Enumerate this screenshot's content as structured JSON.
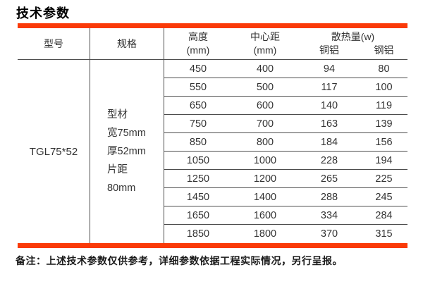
{
  "page": {
    "title": "技术参数",
    "note": "备注：上述技术参数仅供参考，详细参数依据工程实际情况，另行呈报。"
  },
  "colors": {
    "accent_bar": "#fa3a08",
    "grid_line": "#4d4d4d",
    "text": "#333333"
  },
  "table": {
    "model_header": "型号",
    "model_value": "TGL75*52",
    "spec_header": "规格",
    "spec_lines": [
      "型材",
      "宽75mm",
      "厚52mm",
      "片距",
      "80mm"
    ],
    "col_height_line1": "高度",
    "col_height_line2": "(mm)",
    "col_center_line1": "中心距",
    "col_center_line2": "(mm)",
    "col_heat_group": "散热量(w)",
    "col_heat_copper": "铜铝",
    "col_heat_steel": "钢铝",
    "rows": [
      {
        "height": "450",
        "center": "400",
        "copper": "94",
        "steel": "80"
      },
      {
        "height": "550",
        "center": "500",
        "copper": "117",
        "steel": "100"
      },
      {
        "height": "650",
        "center": "600",
        "copper": "140",
        "steel": "119"
      },
      {
        "height": "750",
        "center": "700",
        "copper": "163",
        "steel": "139"
      },
      {
        "height": "850",
        "center": "800",
        "copper": "184",
        "steel": "156"
      },
      {
        "height": "1050",
        "center": "1000",
        "copper": "228",
        "steel": "194"
      },
      {
        "height": "1250",
        "center": "1200",
        "copper": "265",
        "steel": "225"
      },
      {
        "height": "1450",
        "center": "1400",
        "copper": "288",
        "steel": "245"
      },
      {
        "height": "1650",
        "center": "1600",
        "copper": "334",
        "steel": "284"
      },
      {
        "height": "1850",
        "center": "1800",
        "copper": "370",
        "steel": "315"
      }
    ]
  }
}
